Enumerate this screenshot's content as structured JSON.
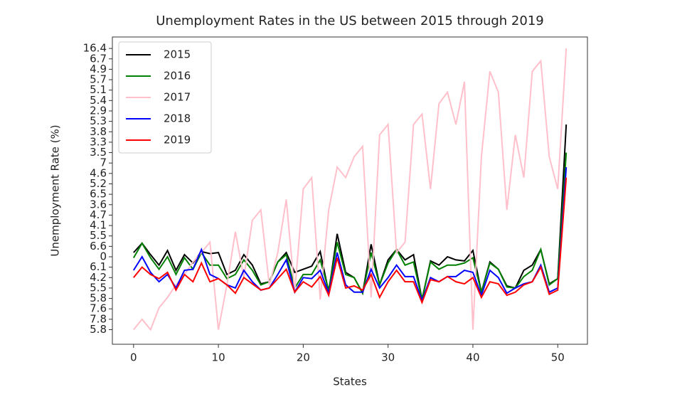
{
  "chart_data": {
    "type": "line",
    "title": "Unemployment Rates in the US between 2015 through 2019",
    "x_label": "States",
    "y_label": "Unemployment Rate (%)",
    "x": [
      0,
      1,
      2,
      3,
      4,
      5,
      6,
      7,
      8,
      9,
      10,
      11,
      12,
      13,
      14,
      15,
      16,
      17,
      18,
      19,
      20,
      21,
      22,
      23,
      24,
      25,
      26,
      27,
      28,
      29,
      30,
      31,
      32,
      33,
      34,
      35,
      36,
      37,
      38,
      39,
      40,
      41,
      42,
      43,
      44,
      45,
      46,
      47,
      48,
      49,
      50,
      51
    ],
    "xlim": [
      -2.5,
      53.5
    ],
    "xticks": [
      0,
      10,
      20,
      30,
      40,
      50
    ],
    "ylim": [
      -1.4,
      28.1
    ],
    "yticks": [
      {
        "value": 0,
        "label": "5.8"
      },
      {
        "value": 1,
        "label": "7.8"
      },
      {
        "value": 2,
        "label": "7.6"
      },
      {
        "value": 3,
        "label": "5.8"
      },
      {
        "value": 4,
        "label": "5.5"
      },
      {
        "value": 5,
        "label": "4.2"
      },
      {
        "value": 6,
        "label": "6.1"
      },
      {
        "value": 7,
        "label": "0"
      },
      {
        "value": 8,
        "label": "6.6"
      },
      {
        "value": 9,
        "label": "5.5"
      },
      {
        "value": 10,
        "label": "4.1"
      },
      {
        "value": 11,
        "label": "4.7"
      },
      {
        "value": 12,
        "label": "3.6"
      },
      {
        "value": 13,
        "label": "6.5"
      },
      {
        "value": 14,
        "label": "5.2"
      },
      {
        "value": 15,
        "label": "4.6"
      },
      {
        "value": 16,
        "label": "7"
      },
      {
        "value": 17,
        "label": "3.5"
      },
      {
        "value": 18,
        "label": "3.3"
      },
      {
        "value": 19,
        "label": "3.8"
      },
      {
        "value": 20,
        "label": "5.3"
      },
      {
        "value": 21,
        "label": "2.9"
      },
      {
        "value": 22,
        "label": "5.4"
      },
      {
        "value": 23,
        "label": "5.1"
      },
      {
        "value": 24,
        "label": "5.7"
      },
      {
        "value": 25,
        "label": "4.9"
      },
      {
        "value": 26,
        "label": "6.7"
      },
      {
        "value": 27,
        "label": "16.4"
      }
    ],
    "legend": "upper left",
    "series": [
      {
        "name": "2015",
        "color": "#000000",
        "values": [
          7.4,
          8.3,
          7.2,
          6.2,
          7.6,
          5.7,
          7.2,
          6.4,
          7.5,
          7.3,
          7.4,
          5.3,
          5.7,
          7.2,
          6.2,
          4.4,
          4.6,
          6.5,
          7.4,
          5.5,
          5.8,
          6.1,
          7.5,
          3.6,
          9.2,
          5.5,
          5.0,
          3.5,
          8.2,
          4.3,
          6.7,
          7.7,
          6.7,
          7.2,
          2.9,
          6.6,
          6.2,
          7.0,
          6.7,
          6.6,
          7.6,
          3.6,
          6.5,
          5.8,
          4.2,
          4.0,
          5.7,
          6.2,
          7.7,
          4.4,
          4.9,
          19.7
        ]
      },
      {
        "name": "2016",
        "color": "#008000",
        "values": [
          6.9,
          8.3,
          6.9,
          5.8,
          7.0,
          5.3,
          6.9,
          5.8,
          7.4,
          6.2,
          6.2,
          4.9,
          5.3,
          6.7,
          5.7,
          4.3,
          4.6,
          6.5,
          7.2,
          4.0,
          5.3,
          5.3,
          6.7,
          3.8,
          8.4,
          5.3,
          5.0,
          3.5,
          7.4,
          4.3,
          6.4,
          7.7,
          6.2,
          6.5,
          2.9,
          6.5,
          5.8,
          6.2,
          6.2,
          6.4,
          6.9,
          3.6,
          6.4,
          5.8,
          4.1,
          4.0,
          5.1,
          5.7,
          7.7,
          4.3,
          4.9,
          17.0
        ]
      },
      {
        "name": "2017",
        "color": "#ffc0cb",
        "values": [
          0,
          1.0,
          0,
          2.1,
          3.1,
          4.3,
          5.3,
          6.5,
          7.4,
          8.4,
          0,
          4.3,
          9.4,
          5.0,
          10.5,
          11.5,
          4.3,
          7.4,
          12.5,
          3.6,
          13.5,
          14.6,
          2.9,
          11.5,
          15.6,
          14.6,
          16.6,
          17.6,
          3.1,
          18.7,
          19.7,
          7.4,
          8.4,
          19.7,
          20.7,
          13.5,
          21.7,
          22.8,
          19.7,
          23.8,
          0,
          16.6,
          24.8,
          22.8,
          11.5,
          18.7,
          14.6,
          24.8,
          25.8,
          16.6,
          13.5,
          27.0
        ]
      },
      {
        "name": "2018",
        "color": "#0000ff",
        "values": [
          5.7,
          7.0,
          5.5,
          4.6,
          5.3,
          4.0,
          5.7,
          5.8,
          7.7,
          5.3,
          4.9,
          4.3,
          4.0,
          5.7,
          4.6,
          3.8,
          4.0,
          5.3,
          6.7,
          3.6,
          5.0,
          4.9,
          5.7,
          3.5,
          7.4,
          4.3,
          3.6,
          3.6,
          5.8,
          4.0,
          5.0,
          6.2,
          5.1,
          5.1,
          2.8,
          5.0,
          4.6,
          5.1,
          5.1,
          5.7,
          5.5,
          3.3,
          5.7,
          5.0,
          3.5,
          4.0,
          4.4,
          4.6,
          6.2,
          3.6,
          4.0,
          15.6
        ]
      },
      {
        "name": "2019",
        "color": "#ff0000",
        "values": [
          5.0,
          6.0,
          5.3,
          4.9,
          5.5,
          3.8,
          5.3,
          4.6,
          6.4,
          4.6,
          4.9,
          4.3,
          3.5,
          5.0,
          4.4,
          3.8,
          4.0,
          4.9,
          5.8,
          3.6,
          4.6,
          4.1,
          5.1,
          3.3,
          6.9,
          4.0,
          4.2,
          3.8,
          5.3,
          3.1,
          4.6,
          5.7,
          4.6,
          4.6,
          2.6,
          4.8,
          4.6,
          5.1,
          4.6,
          4.4,
          5.0,
          3.1,
          4.6,
          4.4,
          3.3,
          3.6,
          4.3,
          4.6,
          6.0,
          3.4,
          3.8,
          14.6
        ]
      }
    ]
  }
}
